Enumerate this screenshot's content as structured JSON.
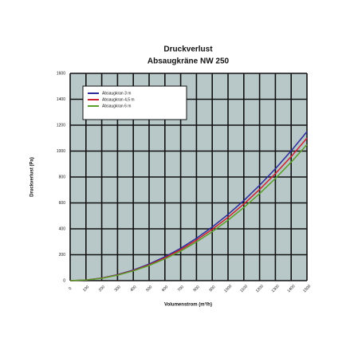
{
  "chart_data": {
    "type": "line",
    "title": "Druckverlust",
    "subtitle": "Absaugkräne NW 250",
    "x_label": "Volumenstrom (m³/h)",
    "y_label": "Druckverlust (Pa)",
    "x": [
      0,
      100,
      200,
      300,
      400,
      500,
      600,
      700,
      800,
      900,
      1000,
      1100,
      1200,
      1300,
      1400,
      1500
    ],
    "series": [
      {
        "name": "Absaugkran 3 m",
        "color": "#2a2a9a",
        "values": [
          0,
          5,
          20,
          46,
          82,
          128,
          184,
          250,
          327,
          414,
          511,
          618,
          736,
          864,
          1002,
          1150
        ]
      },
      {
        "name": "Absaugkran 4,5 m",
        "color": "#cc2030",
        "values": [
          0,
          5,
          19,
          44,
          78,
          122,
          176,
          239,
          313,
          396,
          489,
          591,
          704,
          826,
          958,
          1100
        ]
      },
      {
        "name": "Absaugkran 6 m",
        "color": "#5aa02a",
        "values": [
          0,
          5,
          18,
          42,
          75,
          117,
          168,
          228,
          299,
          378,
          467,
          564,
          672,
          789,
          915,
          1050
        ]
      }
    ],
    "xlim": [
      0,
      1500
    ],
    "xticks": [
      0,
      100,
      200,
      300,
      400,
      500,
      600,
      700,
      800,
      900,
      1000,
      1100,
      1200,
      1300,
      1400,
      1500
    ],
    "ylim": [
      0,
      1600
    ],
    "yticks": [
      0,
      200,
      400,
      600,
      800,
      1000,
      1200,
      1400,
      1600
    ],
    "grid": true,
    "legend": "upper-left"
  }
}
